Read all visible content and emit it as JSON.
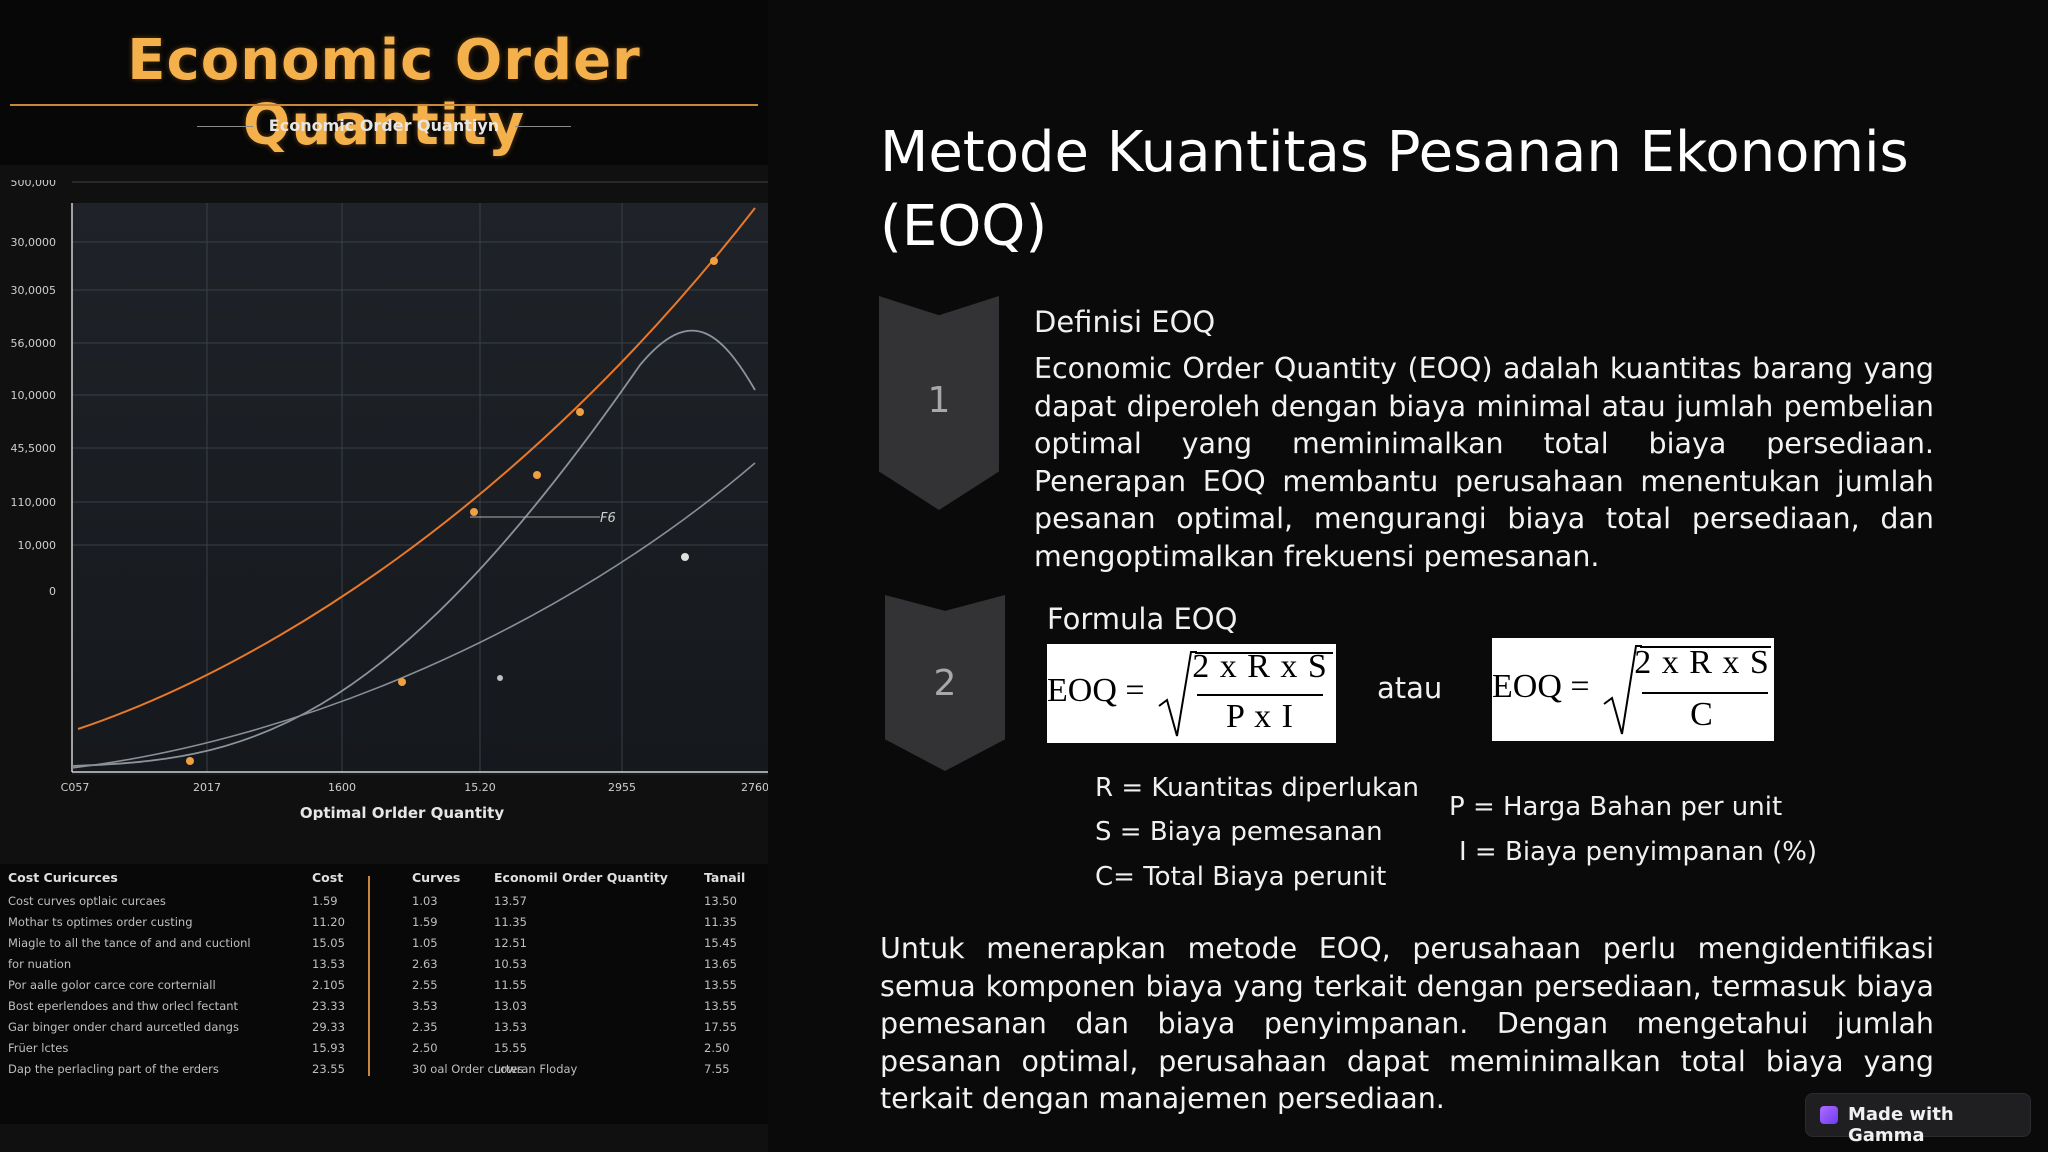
{
  "left_image": {
    "title": "Economic Order Quantity",
    "subtitle": "Economic Order Quantiyn",
    "chart": {
      "y_tick_labels": [
        "500,000",
        "30,0000",
        "30,0005",
        "56,0000",
        "10,0000",
        "45,5000",
        "110,000",
        "10,000",
        "0"
      ],
      "x_tick_labels": [
        "C057",
        "2017",
        "1600",
        "15.20",
        "2955",
        "2760"
      ],
      "xlabel": "Optimal Orlder Quantity",
      "annotation": "F6"
    },
    "table": {
      "headers": [
        "Cost Curicurces",
        "Cost",
        "Curves",
        "Economil Order Quantity",
        "Tanail"
      ],
      "rows": [
        [
          "Cost curves optlaic curcaes",
          "1.59",
          "1.03",
          "13.57",
          "13.50"
        ],
        [
          "Mothar ts optimes order custing",
          "11.20",
          "1.59",
          "11.35",
          "11.35"
        ],
        [
          "Miagle to all the tance of and and cuctionl",
          "15.05",
          "1.05",
          "12.51",
          "15.45"
        ],
        [
          "for nuation",
          "13.53",
          "2.63",
          "10.53",
          "13.65"
        ],
        [
          "Por aalle golor carce core corterniall",
          "2.105",
          "2.55",
          "11.55",
          "13.55"
        ],
        [
          "Bost eperlendoes and thw orlecl fectant",
          "23.33",
          "3.53",
          "13.03",
          "13.55"
        ],
        [
          "Gar binger onder chard aurcetled dangs",
          "29.33",
          "2.35",
          "13.53",
          "17.55"
        ],
        [
          "Früer lctes",
          "15.93",
          "2.50",
          "15.55",
          "2.50"
        ],
        [
          "Dap the perlacling part of the erders",
          "23.55",
          "30 oal Order curtes",
          "Lowran Floday",
          "7.55"
        ]
      ]
    }
  },
  "slide": {
    "title": "Metode Kuantitas Pesanan Ekonomis (EOQ)",
    "steps": [
      {
        "number": "1",
        "heading": "Definisi EOQ",
        "description": "Economic Order Quantity (EOQ) adalah kuantitas barang yang dapat diperoleh dengan biaya minimal atau jumlah pembelian optimal yang meminimalkan total biaya persediaan. Penerapan EOQ membantu perusahaan menentukan jumlah pesanan optimal, mengurangi biaya total persediaan, dan mengoptimalkan frekuensi pemesanan."
      },
      {
        "number": "2",
        "heading": "Formula EOQ"
      }
    ],
    "formula": {
      "lhs": "EOQ =",
      "formula1_numerator": "2 x R x S",
      "formula1_denominator": "P x I",
      "separator": "atau",
      "formula2_numerator": "2 x R x S",
      "formula2_denominator": "C"
    },
    "variables_left": [
      "R = Kuantitas diperlukan",
      "S = Biaya pemesanan",
      "C= Total Biaya perunit"
    ],
    "variables_right": [
      "P = Harga Bahan per unit",
      "I = Biaya penyimpanan (%)"
    ],
    "conclusion": "Untuk menerapkan metode EOQ, perusahaan perlu mengidentifikasi semua komponen biaya yang terkait dengan persediaan, termasuk biaya pemesanan dan biaya penyimpanan. Dengan mengetahui jumlah pesanan optimal, perusahaan dapat meminimalkan total biaya yang terkait dengan manajemen persediaan."
  },
  "badge": {
    "label": "Made with Gamma"
  },
  "colors": {
    "accent_orange": "#e8782a",
    "title_gold": "#f4b04a",
    "background": "#0a0a0a",
    "chevron": "#333335"
  }
}
